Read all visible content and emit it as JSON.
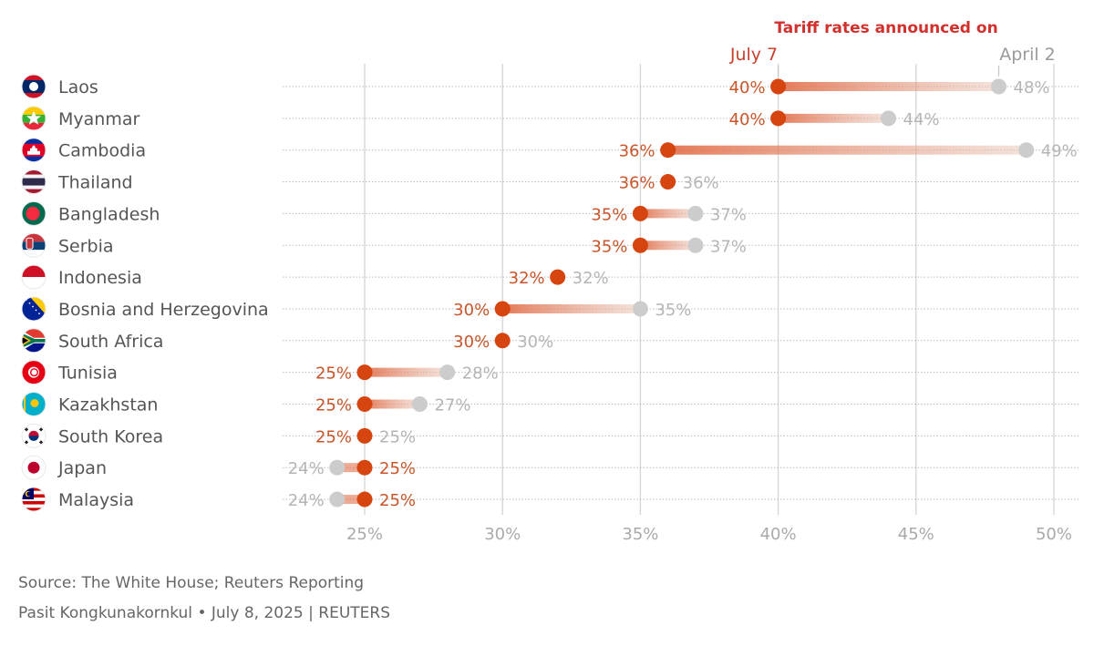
{
  "chart_data": {
    "type": "dumbbell",
    "title": "Tariff rates announced on",
    "legend": {
      "new_label": "July 7",
      "old_label": "April 2",
      "placement": "top-right"
    },
    "xlabel": "",
    "ylabel": "",
    "xlim": [
      25,
      50
    ],
    "x_ticks": [
      25,
      30,
      35,
      40,
      45,
      50
    ],
    "x_tick_labels": [
      "25%",
      "30%",
      "35%",
      "40%",
      "45%",
      "50%"
    ],
    "grid": true,
    "countries": [
      {
        "name": "Laos",
        "flag": "laos-flag",
        "july7": 40,
        "april2": 48
      },
      {
        "name": "Myanmar",
        "flag": "myanmar-flag",
        "july7": 40,
        "april2": 44
      },
      {
        "name": "Cambodia",
        "flag": "cambodia-flag",
        "july7": 36,
        "april2": 49
      },
      {
        "name": "Thailand",
        "flag": "thailand-flag",
        "july7": 36,
        "april2": 36
      },
      {
        "name": "Bangladesh",
        "flag": "bangladesh-flag",
        "july7": 35,
        "april2": 37
      },
      {
        "name": "Serbia",
        "flag": "serbia-flag",
        "july7": 35,
        "april2": 37
      },
      {
        "name": "Indonesia",
        "flag": "indonesia-flag",
        "july7": 32,
        "april2": 32
      },
      {
        "name": "Bosnia and Herzegovina",
        "flag": "bosnia-flag",
        "july7": 30,
        "april2": 35
      },
      {
        "name": "South Africa",
        "flag": "south-africa-flag",
        "july7": 30,
        "april2": 30
      },
      {
        "name": "Tunisia",
        "flag": "tunisia-flag",
        "july7": 25,
        "april2": 28
      },
      {
        "name": "Kazakhstan",
        "flag": "kazakhstan-flag",
        "july7": 25,
        "april2": 27
      },
      {
        "name": "South Korea",
        "flag": "south-korea-flag",
        "july7": 25,
        "april2": 25
      },
      {
        "name": "Japan",
        "flag": "japan-flag",
        "july7": 25,
        "april2": 24
      },
      {
        "name": "Malaysia",
        "flag": "malaysia-flag",
        "july7": 25,
        "april2": 24
      }
    ],
    "colors": {
      "new": "#d6440f",
      "old": "#cccccc",
      "connector": "#e9a283"
    }
  },
  "footer": {
    "source": "Source: The White House; Reuters Reporting",
    "byline": "Pasit Kongkunakornkul • July 8, 2025 | REUTERS"
  }
}
